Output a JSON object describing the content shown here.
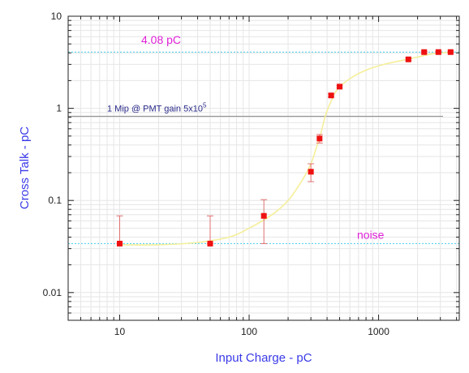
{
  "chart_data": {
    "type": "scatter",
    "xlabel": "Input Charge - pC",
    "ylabel": "Cross Talk - pC",
    "x_scale": "log",
    "y_scale": "log",
    "xlim": [
      4,
      4200
    ],
    "ylim": [
      0.005,
      10
    ],
    "x_tick_labels": [
      "10",
      "100",
      "1000"
    ],
    "x_tick_values": [
      10,
      100,
      1000
    ],
    "y_tick_labels": [
      "0.01",
      "0.1",
      "1",
      "10"
    ],
    "y_tick_values": [
      0.01,
      0.1,
      1,
      10
    ],
    "grid": true,
    "points": [
      {
        "x": 10,
        "y": 0.034,
        "err_lo": 0.034,
        "err_hi": 0.068
      },
      {
        "x": 50,
        "y": 0.034,
        "err_lo": 0.034,
        "err_hi": 0.068
      },
      {
        "x": 130,
        "y": 0.068,
        "err_lo": 0.034,
        "err_hi": 0.102
      },
      {
        "x": 300,
        "y": 0.205,
        "err_lo": 0.16,
        "err_hi": 0.25
      },
      {
        "x": 350,
        "y": 0.47,
        "err_lo": 0.42,
        "err_hi": 0.52
      },
      {
        "x": 430,
        "y": 1.38,
        "err_lo": 1.33,
        "err_hi": 1.43
      },
      {
        "x": 500,
        "y": 1.72,
        "err_lo": 1.67,
        "err_hi": 1.77
      },
      {
        "x": 1700,
        "y": 3.4,
        "err_lo": 3.3,
        "err_hi": 3.5
      },
      {
        "x": 2250,
        "y": 4.08,
        "err_lo": 4.0,
        "err_hi": 4.16
      },
      {
        "x": 2900,
        "y": 4.08,
        "err_lo": 4.0,
        "err_hi": 4.16
      },
      {
        "x": 3600,
        "y": 4.08,
        "err_lo": 4.0,
        "err_hi": 4.16
      }
    ],
    "fit_curve": [
      [
        10,
        0.033
      ],
      [
        20,
        0.033
      ],
      [
        40,
        0.035
      ],
      [
        70,
        0.04
      ],
      [
        100,
        0.05
      ],
      [
        150,
        0.07
      ],
      [
        200,
        0.1
      ],
      [
        260,
        0.17
      ],
      [
        300,
        0.25
      ],
      [
        330,
        0.37
      ],
      [
        360,
        0.55
      ],
      [
        390,
        0.85
      ],
      [
        430,
        1.2
      ],
      [
        480,
        1.6
      ],
      [
        600,
        2.1
      ],
      [
        800,
        2.6
      ],
      [
        1100,
        3.0
      ],
      [
        1500,
        3.3
      ],
      [
        2000,
        3.6
      ],
      [
        2600,
        3.9
      ],
      [
        3600,
        4.08
      ]
    ],
    "reference_lines": [
      {
        "y": 4.08,
        "label": "4.08 pC",
        "color": "#44ccee",
        "style": "dotted"
      },
      {
        "y": 0.82,
        "label": "1 Mip @ PMT gain 5x10",
        "label_sup": "5",
        "color": "#888888",
        "style": "solid"
      },
      {
        "y": 0.034,
        "label": "noise",
        "color": "#44ccee",
        "style": "dotted"
      }
    ],
    "colors": {
      "marker": "#ee1111",
      "error_bar": "#e07070",
      "fit": "#f5ef9a",
      "grid": "#e6e6e6",
      "axis_title": "#3a3ae8",
      "annotation_magenta": "#e020d8",
      "annotation_blue": "#2a2a8a"
    }
  }
}
